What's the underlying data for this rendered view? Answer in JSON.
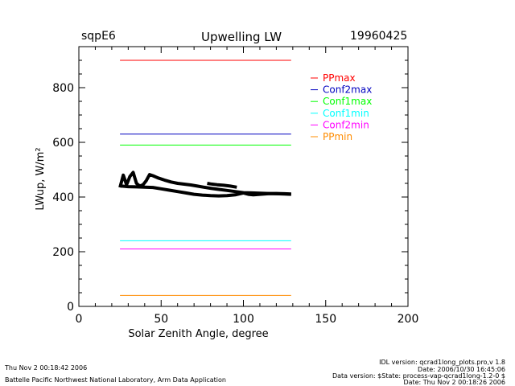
{
  "header": {
    "site": "sqpE6",
    "title": "Upwelling LW",
    "date": "19960425"
  },
  "footer": {
    "left_line1": "Thu Nov  2 00:18:42 2006",
    "left_line2": "Battelle Pacific Northwest National Laboratory, Arm Data Application",
    "right_lines": [
      "IDL version: qcrad1long_plots.pro,v 1.8",
      "Date: 2006/10/30 16:45:06",
      "Data version: $State: process-vap-qcrad1long-1.2-0 $",
      "Date: Thu Nov  2 00:18:26 2006"
    ]
  },
  "chart_data": {
    "type": "line",
    "title": "Upwelling LW",
    "xlabel": "Solar Zenith Angle, degree",
    "ylabel": "LWup, W/m²",
    "xlim": [
      0,
      200
    ],
    "ylim": [
      0,
      950
    ],
    "x_ticks": [
      0,
      50,
      100,
      150,
      200
    ],
    "y_ticks": [
      0,
      200,
      400,
      600,
      800
    ],
    "grid": false,
    "legend_position": "top-right",
    "series": [
      {
        "name": "PPmax",
        "color": "#ff0000",
        "x": [
          25,
          129
        ],
        "y": [
          900,
          900
        ]
      },
      {
        "name": "Conf2max",
        "color": "#0000c0",
        "x": [
          25,
          129
        ],
        "y": [
          630,
          630
        ]
      },
      {
        "name": "Conf1max",
        "color": "#00ff00",
        "x": [
          25,
          129
        ],
        "y": [
          590,
          590
        ]
      },
      {
        "name": "Conf1min",
        "color": "#00ffff",
        "x": [
          25,
          129
        ],
        "y": [
          240,
          240
        ]
      },
      {
        "name": "Conf2min",
        "color": "#ff00ff",
        "x": [
          25,
          129
        ],
        "y": [
          210,
          210
        ]
      },
      {
        "name": "PPmin",
        "color": "#ff8c00",
        "x": [
          25,
          129
        ],
        "y": [
          40,
          40
        ]
      },
      {
        "name": "",
        "color": "#000000",
        "x": [
          25,
          27,
          29,
          31,
          33,
          35,
          37,
          39,
          41,
          43,
          45,
          48,
          52,
          56,
          60,
          64,
          68,
          72,
          76,
          80,
          85,
          90,
          95,
          100,
          105,
          110,
          115,
          120,
          125,
          129
        ],
        "y": [
          435,
          480,
          445,
          475,
          490,
          450,
          440,
          445,
          460,
          482,
          478,
          470,
          462,
          455,
          450,
          447,
          444,
          440,
          436,
          432,
          428,
          424,
          420,
          416,
          415,
          414,
          413,
          412,
          411,
          410
        ]
      },
      {
        "name": "",
        "color": "#000000",
        "x": [
          26,
          30,
          35,
          40,
          45,
          50,
          55,
          60,
          65,
          70,
          75,
          80,
          85,
          90,
          95,
          100,
          103,
          106,
          110,
          115,
          120,
          125,
          129
        ],
        "y": [
          440,
          438,
          437,
          436,
          435,
          430,
          425,
          420,
          415,
          410,
          407,
          405,
          404,
          405,
          408,
          415,
          410,
          408,
          410,
          412,
          413,
          412,
          411
        ]
      },
      {
        "name": "",
        "color": "#000000",
        "x": [
          78,
          80,
          84,
          88,
          92,
          96
        ],
        "y": [
          450,
          448,
          445,
          443,
          440,
          436
        ]
      }
    ]
  }
}
